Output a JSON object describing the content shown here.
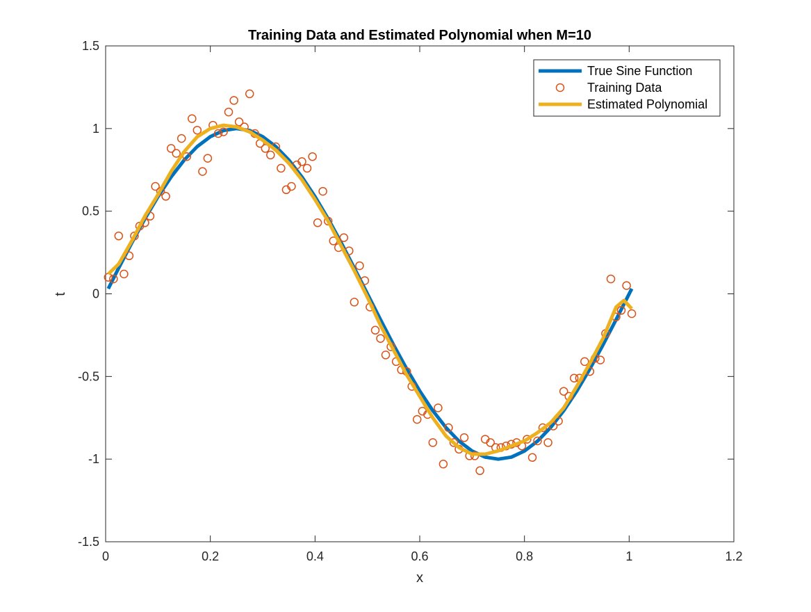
{
  "chart_data": {
    "type": "line",
    "title": "Training Data and Estimated Polynomial when M=10",
    "xlabel": "x",
    "ylabel": "t",
    "xlim": [
      0,
      1.2
    ],
    "ylim": [
      -1.5,
      1.5
    ],
    "xticks": [
      0,
      0.2,
      0.4,
      0.6,
      0.8,
      1,
      1.2
    ],
    "xtick_labels": [
      "0",
      "0.2",
      "0.4",
      "0.6",
      "0.8",
      "1",
      "1.2"
    ],
    "yticks": [
      -1.5,
      -1,
      -0.5,
      0,
      0.5,
      1,
      1.5
    ],
    "ytick_labels": [
      "-1.5",
      "-1",
      "-0.5",
      "0",
      "0.5",
      "1",
      "1.5"
    ],
    "grid": false,
    "legend_position": "top-right",
    "colors": {
      "true_sine": "#0072BD",
      "training": "#D95319",
      "estimate": "#EDB120",
      "axes": "#262626"
    },
    "series": [
      {
        "name": "True Sine Function",
        "type": "line",
        "x": [
          0.005,
          0.025,
          0.05,
          0.075,
          0.1,
          0.125,
          0.15,
          0.175,
          0.2,
          0.225,
          0.25,
          0.275,
          0.3,
          0.325,
          0.35,
          0.375,
          0.4,
          0.425,
          0.45,
          0.475,
          0.5,
          0.525,
          0.55,
          0.575,
          0.6,
          0.625,
          0.65,
          0.675,
          0.7,
          0.725,
          0.75,
          0.775,
          0.8,
          0.825,
          0.85,
          0.875,
          0.9,
          0.925,
          0.95,
          0.975,
          1.005
        ],
        "y": [
          0.031,
          0.156,
          0.309,
          0.454,
          0.588,
          0.707,
          0.809,
          0.891,
          0.951,
          0.988,
          1.0,
          0.988,
          0.951,
          0.891,
          0.809,
          0.707,
          0.588,
          0.454,
          0.309,
          0.156,
          0.0,
          -0.156,
          -0.309,
          -0.454,
          -0.588,
          -0.707,
          -0.809,
          -0.891,
          -0.951,
          -0.988,
          -1.0,
          -0.988,
          -0.951,
          -0.891,
          -0.809,
          -0.707,
          -0.588,
          -0.454,
          -0.309,
          -0.156,
          0.031
        ]
      },
      {
        "name": "Training Data",
        "type": "scatter",
        "x": [
          0.005,
          0.015,
          0.025,
          0.035,
          0.045,
          0.055,
          0.065,
          0.075,
          0.085,
          0.095,
          0.105,
          0.115,
          0.125,
          0.135,
          0.145,
          0.155,
          0.165,
          0.175,
          0.185,
          0.195,
          0.205,
          0.215,
          0.225,
          0.235,
          0.245,
          0.255,
          0.265,
          0.275,
          0.285,
          0.295,
          0.305,
          0.315,
          0.325,
          0.335,
          0.345,
          0.355,
          0.365,
          0.375,
          0.385,
          0.395,
          0.405,
          0.415,
          0.425,
          0.435,
          0.445,
          0.455,
          0.465,
          0.475,
          0.485,
          0.495,
          0.505,
          0.515,
          0.525,
          0.535,
          0.545,
          0.555,
          0.565,
          0.575,
          0.585,
          0.595,
          0.605,
          0.615,
          0.625,
          0.635,
          0.645,
          0.655,
          0.665,
          0.675,
          0.685,
          0.695,
          0.705,
          0.715,
          0.725,
          0.735,
          0.745,
          0.755,
          0.765,
          0.775,
          0.785,
          0.795,
          0.805,
          0.815,
          0.825,
          0.835,
          0.845,
          0.855,
          0.865,
          0.875,
          0.885,
          0.895,
          0.905,
          0.915,
          0.925,
          0.935,
          0.945,
          0.955,
          0.965,
          0.975,
          0.985,
          0.995,
          1.005
        ],
        "y": [
          0.1,
          0.09,
          0.35,
          0.12,
          0.23,
          0.35,
          0.41,
          0.43,
          0.47,
          0.65,
          0.62,
          0.59,
          0.88,
          0.85,
          0.94,
          0.83,
          1.06,
          0.99,
          0.74,
          0.82,
          1.02,
          0.97,
          0.98,
          1.1,
          1.17,
          1.04,
          1.01,
          1.21,
          0.97,
          0.91,
          0.88,
          0.84,
          0.89,
          0.76,
          0.63,
          0.65,
          0.78,
          0.8,
          0.76,
          0.83,
          0.43,
          0.62,
          0.44,
          0.32,
          0.28,
          0.34,
          0.26,
          -0.05,
          0.17,
          0.08,
          -0.08,
          -0.22,
          -0.27,
          -0.37,
          -0.32,
          -0.41,
          -0.46,
          -0.47,
          -0.56,
          -0.76,
          -0.71,
          -0.73,
          -0.9,
          -0.69,
          -1.03,
          -0.81,
          -0.9,
          -0.94,
          -0.87,
          -0.98,
          -0.98,
          -1.07,
          -0.88,
          -0.9,
          -0.93,
          -0.93,
          -0.92,
          -0.91,
          -0.9,
          -0.92,
          -0.88,
          -0.99,
          -0.89,
          -0.81,
          -0.9,
          -0.8,
          -0.77,
          -0.59,
          -0.62,
          -0.51,
          -0.51,
          -0.41,
          -0.47,
          -0.39,
          -0.4,
          -0.24,
          0.09,
          -0.14,
          -0.1,
          0.05,
          -0.12
        ]
      },
      {
        "name": "Estimated Polynomial",
        "type": "line",
        "x": [
          0.005,
          0.025,
          0.05,
          0.075,
          0.1,
          0.125,
          0.15,
          0.175,
          0.2,
          0.225,
          0.25,
          0.275,
          0.3,
          0.325,
          0.35,
          0.375,
          0.4,
          0.425,
          0.45,
          0.475,
          0.5,
          0.525,
          0.55,
          0.575,
          0.6,
          0.625,
          0.65,
          0.675,
          0.7,
          0.725,
          0.75,
          0.775,
          0.8,
          0.825,
          0.85,
          0.875,
          0.9,
          0.925,
          0.95,
          0.975,
          0.99,
          1.005
        ],
        "y": [
          0.12,
          0.18,
          0.32,
          0.47,
          0.6,
          0.74,
          0.86,
          0.95,
          1.0,
          1.02,
          1.01,
          0.98,
          0.93,
          0.87,
          0.79,
          0.69,
          0.57,
          0.44,
          0.29,
          0.14,
          -0.02,
          -0.19,
          -0.34,
          -0.49,
          -0.62,
          -0.75,
          -0.86,
          -0.93,
          -0.97,
          -0.97,
          -0.95,
          -0.92,
          -0.89,
          -0.84,
          -0.78,
          -0.69,
          -0.56,
          -0.42,
          -0.27,
          -0.08,
          -0.04,
          -0.09
        ]
      }
    ]
  }
}
